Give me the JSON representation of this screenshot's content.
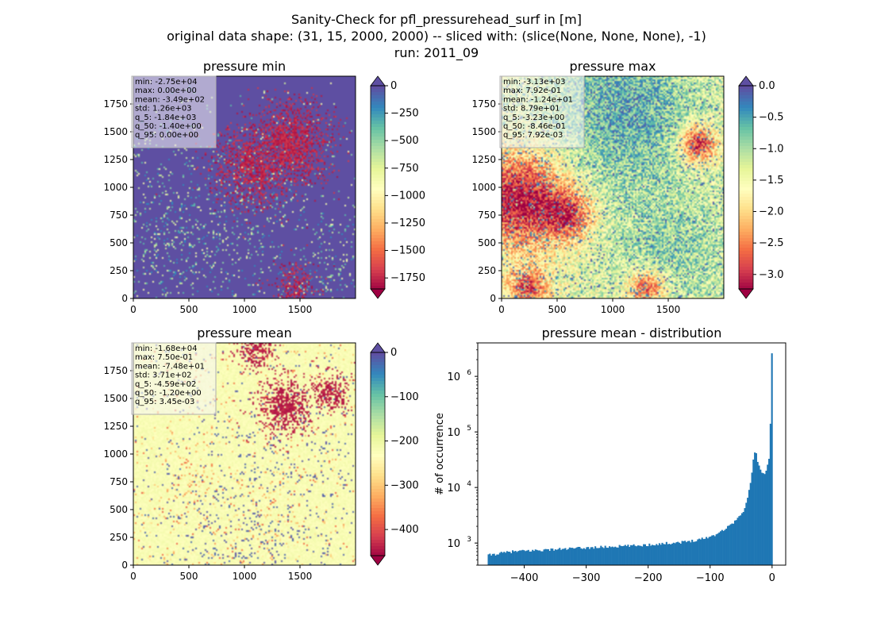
{
  "figure": {
    "suptitle": [
      "Sanity-Check for pfl_pressurehead_surf in [m]",
      "original data shape: (31, 15, 2000, 2000) -- sliced with: (slice(None, None, None), -1)",
      "run: 2011_09"
    ]
  },
  "chart_data": [
    {
      "type": "heatmap",
      "title": "pressure min",
      "x_ticks": [
        0,
        500,
        1000,
        1500
      ],
      "y_ticks": [
        0,
        250,
        500,
        750,
        1000,
        1250,
        1500,
        1750
      ],
      "xlim": [
        0,
        2000
      ],
      "ylim": [
        0,
        2000
      ],
      "colormap": "Spectral",
      "colorbar": {
        "range": [
          -1850,
          0
        ],
        "ticks": [
          0,
          -250,
          -500,
          -750,
          -1000,
          -1250,
          -1500,
          -1750
        ],
        "extend": "both"
      },
      "stats": [
        "min: -2.75e+04",
        "max: 0.00e+00",
        "mean: -3.49e+02",
        "std: 1.26e+03",
        "q_5: -1.84e+03",
        "q_50: -1.40e+00",
        "q_95: 0.00e+00"
      ]
    },
    {
      "type": "heatmap",
      "title": "pressure max",
      "x_ticks": [
        0,
        500,
        1000,
        1500
      ],
      "y_ticks": [
        0,
        250,
        500,
        750,
        1000,
        1250,
        1500,
        1750
      ],
      "xlim": [
        0,
        2000
      ],
      "ylim": [
        0,
        2000
      ],
      "colormap": "Spectral",
      "colorbar": {
        "range": [
          -3.23,
          0.0
        ],
        "ticks": [
          "0.0",
          "−0.5",
          "−1.0",
          "−1.5",
          "−2.0",
          "−2.5",
          "−3.0"
        ],
        "tick_values": [
          0,
          -0.5,
          -1.0,
          -1.5,
          -2.0,
          -2.5,
          -3.0
        ],
        "extend": "both"
      },
      "stats": [
        "min: -3.13e+03",
        "max: 7.92e-01",
        "mean: -1.24e+01",
        "std: 8.79e+01",
        "q_5: -3.23e+00",
        "q_50: -8.46e-01",
        "q_95: 7.92e-03"
      ]
    },
    {
      "type": "heatmap",
      "title": "pressure mean",
      "x_ticks": [
        0,
        500,
        1000,
        1500
      ],
      "y_ticks": [
        0,
        250,
        500,
        750,
        1000,
        1250,
        1500,
        1750
      ],
      "xlim": [
        0,
        2000
      ],
      "ylim": [
        0,
        2000
      ],
      "colormap": "Spectral",
      "colorbar": {
        "range": [
          -459,
          0
        ],
        "ticks": [
          0,
          -100,
          -200,
          -300,
          -400
        ],
        "extend": "both"
      },
      "stats": [
        "min: -1.68e+04",
        "max: 7.50e-01",
        "mean: -7.48e+01",
        "std: 3.71e+02",
        "q_5: -4.59e+02",
        "q_50: -1.20e+00",
        "q_95: 3.45e-03"
      ]
    },
    {
      "type": "bar",
      "subtype": "histogram",
      "title": "pressure mean - distribution",
      "xlabel": "",
      "ylabel": "# of occurrence",
      "yscale": "log",
      "xlim": [
        -475,
        22
      ],
      "ylim": [
        400,
        4000000
      ],
      "x_ticks": [
        -400,
        -300,
        -200,
        -100,
        0
      ],
      "y_ticks": [
        "10^3",
        "10^4",
        "10^5",
        "10^6"
      ],
      "color": "#1f77b4",
      "bin_range": [
        -459,
        0.75
      ],
      "bin_count": 200,
      "anchors_x": [
        -459,
        -440,
        -420,
        -400,
        -380,
        -360,
        -340,
        -320,
        -300,
        -280,
        -260,
        -240,
        -220,
        -200,
        -180,
        -160,
        -140,
        -120,
        -100,
        -90,
        -80,
        -70,
        -60,
        -50,
        -45,
        -42,
        -40,
        -38,
        -36,
        -34,
        -32,
        -30,
        -28,
        -26,
        -24,
        -22,
        -20,
        -18,
        -16,
        -14,
        -12,
        -10,
        -8,
        -6,
        -4,
        -2,
        0
      ],
      "anchors_y": [
        600,
        650,
        700,
        720,
        740,
        760,
        780,
        800,
        820,
        840,
        860,
        880,
        900,
        930,
        970,
        1010,
        1050,
        1150,
        1300,
        1450,
        1700,
        2000,
        2500,
        3200,
        4000,
        5000,
        6000,
        7800,
        10000,
        15000,
        22000,
        32000,
        45000,
        42000,
        33000,
        26000,
        22000,
        19000,
        17500,
        17000,
        18000,
        20000,
        24000,
        30000,
        40000,
        300000,
        2600000
      ]
    }
  ]
}
